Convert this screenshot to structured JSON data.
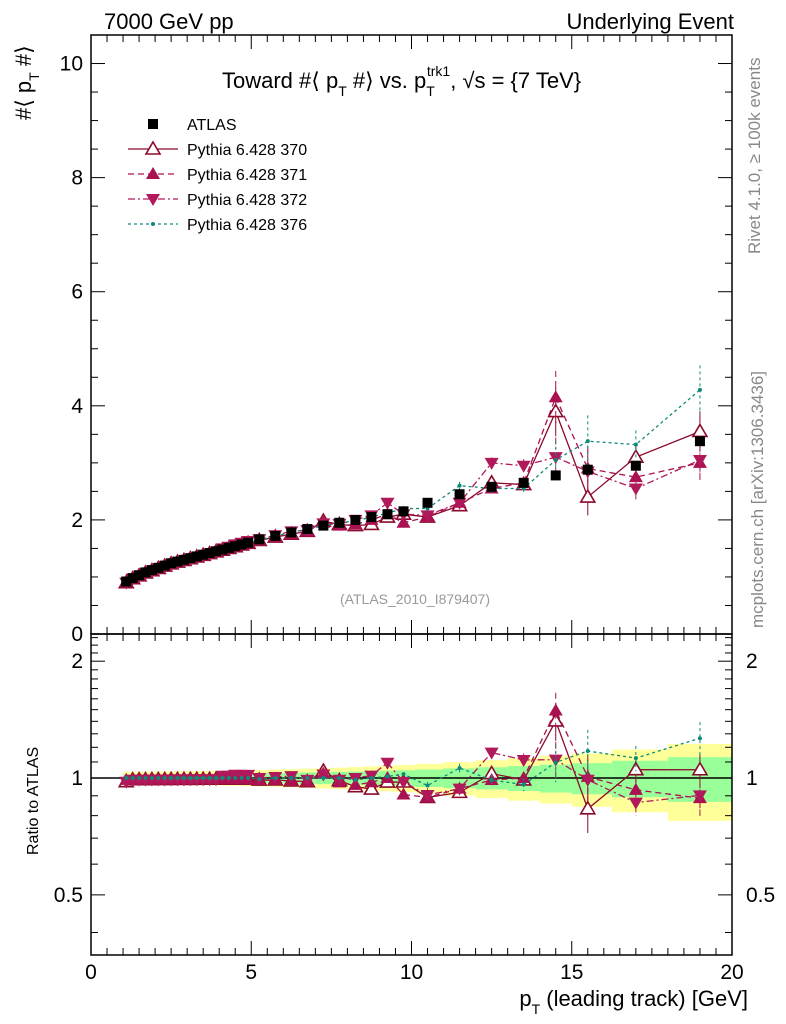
{
  "header": {
    "left": "7000 GeV pp",
    "right": "Underlying Event"
  },
  "side": {
    "rivet": "Rivet 4.1.0, ≥ 100k events",
    "mcplots": "mcplots.cern.ch [arXiv:1306.3436]"
  },
  "chart_data": {
    "type": "scatter",
    "title": "Toward #⟨ p_T #⟩ vs. p_T^trk1, √s = {7 TeV}",
    "title_parts": {
      "a": "Toward #⟨ p",
      "b": "T",
      "c": " #⟩ vs. p",
      "d": "T",
      "e": "trk1",
      "f": ", √s = {7 TeV}"
    },
    "watermark": "(ATLAS_2010_I879407)",
    "ylabel_main": "#⟨ p_T #⟩",
    "ylabel_main_parts": {
      "a": "#⟨ p",
      "b": "T",
      "c": " #⟩"
    },
    "ylabel_ratio": "Ratio to ATLAS",
    "xlabel": "p_T (leading track) [GeV]",
    "xlabel_parts": {
      "a": "p",
      "b": "T",
      "c": " (leading track) [GeV]"
    },
    "xlim": [
      0,
      20
    ],
    "ylim_main": [
      0,
      10.5
    ],
    "ylim_ratio": [
      0.35,
      2.35
    ],
    "xticks": [
      "0",
      "5",
      "10",
      "15",
      "20"
    ],
    "yticks_main": [
      "0",
      "2",
      "4",
      "6",
      "8",
      "10"
    ],
    "yticks_ratio": [
      "0.5",
      "1",
      "2"
    ],
    "x": [
      1.1,
      1.3,
      1.5,
      1.7,
      1.9,
      2.1,
      2.3,
      2.5,
      2.7,
      2.9,
      3.1,
      3.3,
      3.5,
      3.7,
      3.9,
      4.1,
      4.3,
      4.5,
      4.7,
      4.9,
      5.25,
      5.75,
      6.25,
      6.75,
      7.25,
      7.75,
      8.25,
      8.75,
      9.25,
      9.75,
      10.5,
      11.5,
      12.5,
      13.5,
      14.5,
      15.5,
      17.0,
      19.0
    ],
    "atlas": [
      0.92,
      0.98,
      1.03,
      1.08,
      1.12,
      1.16,
      1.2,
      1.24,
      1.27,
      1.3,
      1.33,
      1.36,
      1.39,
      1.42,
      1.45,
      1.48,
      1.51,
      1.54,
      1.57,
      1.6,
      1.66,
      1.72,
      1.78,
      1.84,
      1.9,
      1.95,
      2.0,
      2.05,
      2.1,
      2.15,
      2.3,
      2.45,
      2.58,
      2.65,
      2.78,
      2.88,
      2.95,
      3.38
    ],
    "series": [
      {
        "name": "Pythia 6.428 370",
        "color": "#8b0a2a",
        "dash": "",
        "marker": "triangle-up-open",
        "values": [
          0.9,
          0.97,
          1.02,
          1.07,
          1.11,
          1.15,
          1.19,
          1.23,
          1.26,
          1.29,
          1.32,
          1.35,
          1.38,
          1.41,
          1.44,
          1.47,
          1.5,
          1.53,
          1.56,
          1.59,
          1.64,
          1.7,
          1.75,
          1.8,
          1.98,
          1.92,
          1.9,
          1.92,
          2.05,
          2.1,
          2.05,
          2.25,
          2.65,
          2.62,
          3.9,
          2.4,
          3.1,
          3.55
        ]
      },
      {
        "name": "Pythia 6.428 371",
        "color": "#aa1150",
        "dash": "6,4",
        "marker": "triangle-up",
        "values": [
          0.91,
          0.97,
          1.02,
          1.07,
          1.11,
          1.15,
          1.19,
          1.23,
          1.26,
          1.29,
          1.32,
          1.35,
          1.38,
          1.41,
          1.44,
          1.47,
          1.5,
          1.53,
          1.56,
          1.59,
          1.64,
          1.7,
          1.75,
          1.8,
          1.95,
          1.9,
          1.92,
          2.0,
          2.1,
          1.95,
          2.05,
          2.3,
          2.55,
          2.65,
          4.15,
          2.9,
          2.75,
          3.0
        ]
      },
      {
        "name": "Pythia 6.428 372",
        "color": "#b0195a",
        "dash": "7,3,2,3",
        "marker": "triangle-down",
        "values": [
          0.9,
          0.97,
          1.02,
          1.07,
          1.11,
          1.15,
          1.19,
          1.23,
          1.26,
          1.29,
          1.32,
          1.35,
          1.38,
          1.41,
          1.44,
          1.5,
          1.53,
          1.57,
          1.6,
          1.63,
          1.66,
          1.73,
          1.8,
          1.82,
          1.94,
          1.93,
          2.0,
          2.08,
          2.3,
          2.1,
          2.08,
          2.3,
          3.0,
          2.95,
          3.1,
          2.85,
          2.55,
          3.05
        ]
      },
      {
        "name": "Pythia 6.428 376",
        "color": "#0e8a7a",
        "dash": "3,3",
        "marker": "dot",
        "values": [
          0.92,
          0.98,
          1.03,
          1.08,
          1.12,
          1.16,
          1.2,
          1.24,
          1.27,
          1.3,
          1.33,
          1.36,
          1.39,
          1.42,
          1.45,
          1.48,
          1.51,
          1.54,
          1.57,
          1.6,
          1.65,
          1.72,
          1.78,
          1.84,
          1.9,
          1.95,
          1.98,
          2.05,
          2.12,
          2.2,
          2.2,
          2.6,
          2.55,
          2.55,
          3.05,
          3.38,
          3.32,
          4.28
        ]
      }
    ]
  }
}
